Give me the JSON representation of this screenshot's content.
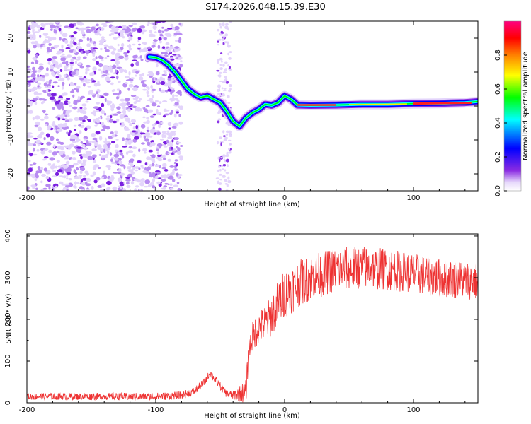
{
  "title": "S174.2026.048.15.39.E30",
  "chart_data": [
    {
      "type": "heatmap",
      "name": "spectrogram",
      "xlabel": "Height of straight line (km)",
      "ylabel": "Frequency (Hz)",
      "xlim": [
        -200,
        150
      ],
      "ylim": [
        -25,
        25
      ],
      "xticks": [
        "-200",
        "-100",
        "0",
        "100"
      ],
      "yticks": [
        "-20",
        "-10",
        "0",
        "10",
        "20"
      ],
      "colorbar": {
        "label": "Normalized spectral amplitude",
        "range": [
          0,
          1
        ],
        "ticks": [
          "0.0",
          "0.2",
          "0.4",
          "0.6",
          "0.8"
        ],
        "colors": [
          "#ffffff",
          "#e6d8fb",
          "#8a2be2",
          "#0000ff",
          "#00ffff",
          "#00ff00",
          "#ffff00",
          "#ff8000",
          "#ff0000",
          "#ff0080"
        ]
      },
      "ridge": {
        "x": [
          -105,
          -100,
          -95,
          -90,
          -85,
          -80,
          -75,
          -70,
          -65,
          -60,
          -55,
          -50,
          -45,
          -40,
          -35,
          -30,
          -25,
          -20,
          -15,
          -10,
          -5,
          0,
          5,
          10,
          20,
          40,
          60,
          80,
          100,
          120,
          140,
          150
        ],
        "y": [
          14.5,
          14.3,
          13.5,
          12,
          10,
          7.5,
          5,
          3.5,
          2.5,
          3,
          2,
          1,
          -1.5,
          -4.5,
          -6,
          -3.5,
          -2,
          -1,
          0.5,
          0.2,
          1,
          3,
          2,
          0.3,
          0.2,
          0.3,
          0.5,
          0.5,
          0.7,
          0.8,
          1.0,
          1.3
        ]
      }
    },
    {
      "type": "line",
      "name": "snr",
      "xlabel": "Height of straight line (km)",
      "ylabel": "SNR (10 * v/v)",
      "xlim": [
        -200,
        150
      ],
      "ylim": [
        0,
        405
      ],
      "xticks": [
        "-200",
        "-100",
        "0",
        "100"
      ],
      "yticks": [
        "0",
        "100",
        "200",
        "300",
        "400"
      ],
      "color": "#ee3333",
      "envelope": {
        "x": [
          -200,
          -150,
          -100,
          -80,
          -70,
          -62,
          -58,
          -55,
          -50,
          -45,
          -40,
          -30,
          -28,
          -25,
          -20,
          -15,
          -10,
          -5,
          0,
          10,
          20,
          30,
          40,
          60,
          80,
          100,
          120,
          140,
          150
        ],
        "y": [
          15,
          15,
          15,
          18,
          28,
          50,
          72,
          60,
          40,
          22,
          18,
          25,
          120,
          160,
          180,
          190,
          210,
          240,
          260,
          285,
          300,
          310,
          320,
          325,
          320,
          310,
          300,
          295,
          290
        ]
      },
      "noise": {
        "x": [
          -200,
          -40,
          -30,
          0,
          20,
          150
        ],
        "amp": [
          8,
          10,
          30,
          60,
          55,
          45
        ]
      }
    }
  ]
}
